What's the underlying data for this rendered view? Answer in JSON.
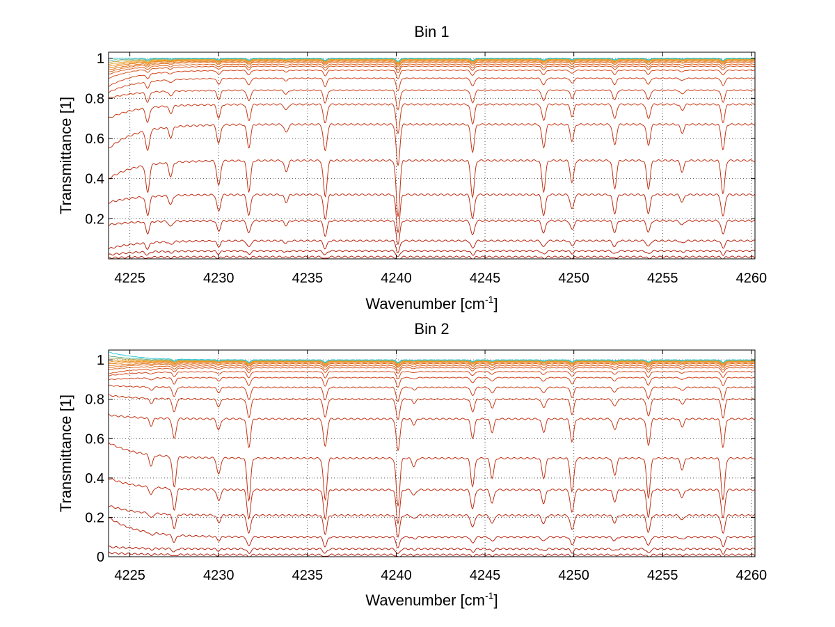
{
  "chart_data": [
    {
      "type": "line",
      "title": "Bin 1",
      "xlabel": "Wavenumber [cm",
      "xlabel_sup": "-1",
      "xlabel_close": "]",
      "ylabel": "Transmittance [1]",
      "xlim": [
        4223.8,
        4260.2
      ],
      "ylim": [
        0.0,
        1.03
      ],
      "xticks": [
        4225,
        4230,
        4235,
        4240,
        4245,
        4250,
        4255,
        4260
      ],
      "xtick_labels": [
        "4225",
        "4230",
        "4235",
        "4240",
        "4245",
        "4250",
        "4255",
        "4260"
      ],
      "yticks": [
        0.2,
        0.4,
        0.6,
        0.8,
        1.0
      ],
      "ytick_labels": [
        "0.2",
        "0.4",
        "0.6",
        "0.8",
        "1"
      ],
      "grid": true,
      "baselines": [
        1.0,
        0.998,
        0.996,
        0.994,
        0.992,
        0.99,
        0.985,
        0.98,
        0.97,
        0.96,
        0.94,
        0.9,
        0.84,
        0.77,
        0.67,
        0.49,
        0.32,
        0.19,
        0.09,
        0.04,
        0.01
      ],
      "start_values": [
        1.0,
        0.99,
        0.98,
        0.97,
        0.96,
        0.95,
        0.94,
        0.93,
        0.92,
        0.9,
        0.86,
        0.83,
        0.8,
        0.7,
        0.55,
        0.4,
        0.28,
        0.17,
        0.05,
        0.02,
        0.005
      ],
      "absorption_lines": [
        {
          "x": 4226.0,
          "depth": 0.5
        },
        {
          "x": 4227.3,
          "depth": 0.25
        },
        {
          "x": 4230.0,
          "depth": 0.45
        },
        {
          "x": 4231.7,
          "depth": 0.55
        },
        {
          "x": 4233.8,
          "depth": 0.2
        },
        {
          "x": 4236.0,
          "depth": 0.65
        },
        {
          "x": 4240.1,
          "depth": 1.0
        },
        {
          "x": 4244.3,
          "depth": 0.65
        },
        {
          "x": 4248.3,
          "depth": 0.55
        },
        {
          "x": 4249.9,
          "depth": 0.4
        },
        {
          "x": 4252.3,
          "depth": 0.5
        },
        {
          "x": 4254.2,
          "depth": 0.5
        },
        {
          "x": 4256.1,
          "depth": 0.2
        },
        {
          "x": 4258.4,
          "depth": 0.6
        }
      ]
    },
    {
      "type": "line",
      "title": "Bin 2",
      "xlabel": "Wavenumber [cm",
      "xlabel_sup": "-1",
      "xlabel_close": "]",
      "ylabel": "Transmittance [1]",
      "xlim": [
        4223.8,
        4260.2
      ],
      "ylim": [
        0.0,
        1.05
      ],
      "xticks": [
        4225,
        4230,
        4235,
        4240,
        4245,
        4250,
        4255,
        4260
      ],
      "xtick_labels": [
        "4225",
        "4230",
        "4235",
        "4240",
        "4245",
        "4250",
        "4255",
        "4260"
      ],
      "yticks": [
        0.0,
        0.2,
        0.4,
        0.6,
        0.8,
        1.0
      ],
      "ytick_labels": [
        "0",
        "0.2",
        "0.4",
        "0.6",
        "0.8",
        "1"
      ],
      "grid": true,
      "baselines": [
        1.0,
        0.998,
        0.996,
        0.994,
        0.992,
        0.99,
        0.985,
        0.98,
        0.97,
        0.96,
        0.94,
        0.91,
        0.86,
        0.8,
        0.7,
        0.5,
        0.34,
        0.21,
        0.1,
        0.04,
        0.01
      ],
      "start_values": [
        1.04,
        1.02,
        1.01,
        1.0,
        0.99,
        0.98,
        0.97,
        0.96,
        0.95,
        0.93,
        0.92,
        0.9,
        0.87,
        0.82,
        0.72,
        0.58,
        0.4,
        0.26,
        0.2,
        0.05,
        0.02
      ],
      "absorption_lines": [
        {
          "x": 4226.2,
          "depth": 0.2
        },
        {
          "x": 4227.5,
          "depth": 0.55
        },
        {
          "x": 4230.0,
          "depth": 0.3
        },
        {
          "x": 4231.7,
          "depth": 0.75
        },
        {
          "x": 4236.0,
          "depth": 0.75
        },
        {
          "x": 4240.1,
          "depth": 0.85
        },
        {
          "x": 4241.0,
          "depth": 0.15
        },
        {
          "x": 4244.3,
          "depth": 0.5
        },
        {
          "x": 4245.4,
          "depth": 0.35
        },
        {
          "x": 4248.3,
          "depth": 0.35
        },
        {
          "x": 4249.9,
          "depth": 0.6
        },
        {
          "x": 4252.3,
          "depth": 0.3
        },
        {
          "x": 4254.2,
          "depth": 0.7
        },
        {
          "x": 4256.1,
          "depth": 0.2
        },
        {
          "x": 4258.4,
          "depth": 0.75
        }
      ]
    }
  ],
  "colors": {
    "low_curve": "#b01c0c",
    "mid_curve": "#d2461a",
    "high_curve": "#f0a020",
    "top_curve": "#30c8d8",
    "axis": "#000000",
    "grid": "#555555"
  }
}
